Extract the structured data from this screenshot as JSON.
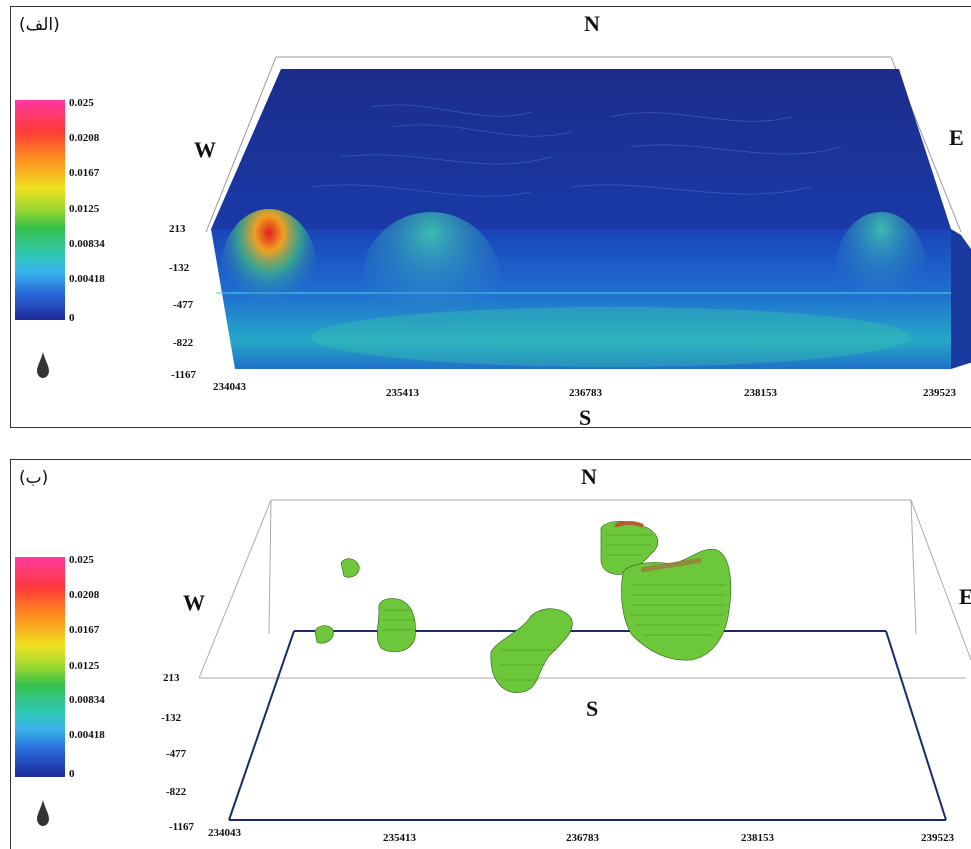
{
  "panels": [
    {
      "label": "(الف)",
      "directions": {
        "north": "N",
        "south": "S",
        "west": "W",
        "east": "E"
      },
      "colorbar_ticks": [
        "0.025",
        "0.0208",
        "0.0167",
        "0.0125",
        "0.00834",
        "0.00418",
        "0"
      ],
      "depth_ticks": [
        "213",
        "-132",
        "-477",
        "-822",
        "-1167"
      ],
      "easting_ticks": [
        "234043",
        "235413",
        "236783",
        "238153",
        "239523"
      ]
    },
    {
      "label": "(ب)",
      "directions": {
        "north": "N",
        "south": "S",
        "west": "W",
        "east": "E"
      },
      "colorbar_ticks": [
        "0.025",
        "0.0208",
        "0.0167",
        "0.0125",
        "0.00834",
        "0.00418",
        "0"
      ],
      "depth_ticks": [
        "213",
        "-132",
        "-477",
        "-822",
        "-1167"
      ],
      "easting_ticks": [
        "234043",
        "235413",
        "236783",
        "238153",
        "239523"
      ]
    }
  ],
  "colors": {
    "colormap": [
      "#1e2a9a",
      "#2a68d8",
      "#3ab4ec",
      "#2ec8b0",
      "#37c04a",
      "#9ad830",
      "#f0e020",
      "#ff8a20",
      "#ff3a3a",
      "#ff3aa0"
    ],
    "isosurface": "#6cc83a"
  }
}
